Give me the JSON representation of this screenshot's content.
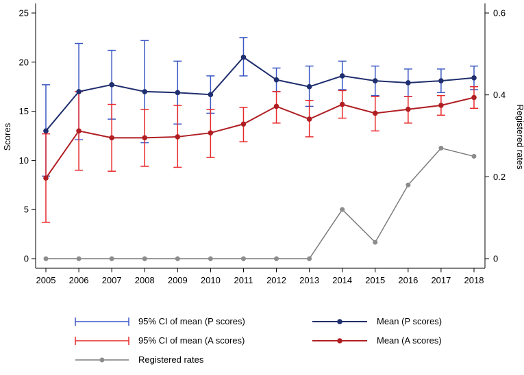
{
  "chart_data": {
    "type": "line",
    "x": [
      "2005",
      "2006",
      "2007",
      "2008",
      "2009",
      "2010",
      "2011",
      "2012",
      "2013",
      "2014",
      "2015",
      "2016",
      "2017",
      "2018"
    ],
    "ylabel": "Scores",
    "y2label": "Registered rates",
    "ylim": [
      0,
      25
    ],
    "y2lim": [
      0,
      0.6
    ],
    "y_ticks": [
      "0",
      "5",
      "10",
      "15",
      "20",
      "25"
    ],
    "y2_ticks": [
      "0",
      "0.2",
      "0.4",
      "0.6"
    ],
    "series": [
      {
        "name": "Mean (P scores)",
        "color": "#1f2e6e",
        "axis": "left",
        "values": [
          13.0,
          17.0,
          17.7,
          17.0,
          16.9,
          16.7,
          20.5,
          18.2,
          17.5,
          18.6,
          18.1,
          17.9,
          18.1,
          18.4
        ]
      },
      {
        "name": "Mean (A scores)",
        "color": "#b01e23",
        "axis": "left",
        "values": [
          8.2,
          13.0,
          12.3,
          12.3,
          12.4,
          12.8,
          13.7,
          15.5,
          14.2,
          15.7,
          14.8,
          15.2,
          15.6,
          16.4
        ]
      },
      {
        "name": "Registered rates",
        "color": "#7a7a7a",
        "axis": "right",
        "values": [
          0,
          0,
          0,
          0,
          0,
          0,
          0,
          0,
          0,
          0.12,
          0.04,
          0.18,
          0.27,
          0.25
        ]
      }
    ],
    "error_bars": [
      {
        "name": "95% CI of mean (P scores)",
        "color": "#3b57c4",
        "low": [
          8.4,
          12.1,
          14.2,
          11.8,
          13.7,
          14.8,
          18.6,
          17.0,
          15.5,
          17.2,
          16.6,
          16.5,
          16.9,
          17.2
        ],
        "high": [
          17.7,
          21.9,
          21.2,
          22.2,
          20.1,
          18.6,
          22.5,
          19.4,
          19.6,
          20.1,
          19.6,
          19.3,
          19.3,
          19.6
        ]
      },
      {
        "name": "95% CI of mean (A scores)",
        "color": "#e8282a",
        "low": [
          3.7,
          9.0,
          8.9,
          9.4,
          9.3,
          10.3,
          11.9,
          13.8,
          12.4,
          14.3,
          13.0,
          13.8,
          14.6,
          15.3
        ],
        "high": [
          12.7,
          17.0,
          15.7,
          15.2,
          15.6,
          15.2,
          15.4,
          17.0,
          16.1,
          17.1,
          16.5,
          16.5,
          16.6,
          17.5
        ]
      }
    ],
    "legend": {
      "placement": "bottom",
      "entries": [
        "95% CI of mean (P scores)",
        "Mean (P scores)",
        "95% CI of mean (A scores)",
        "Mean (A scores)",
        "Registered rates"
      ]
    }
  }
}
